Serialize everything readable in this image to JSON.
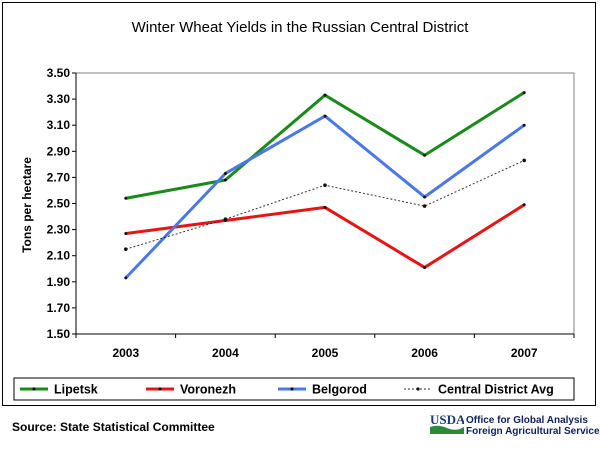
{
  "chart_data": {
    "type": "line",
    "title": "Winter Wheat Yields in the Russian Central District",
    "xlabel": "",
    "ylabel": "Tons per hectare",
    "categories": [
      "2003",
      "2004",
      "2005",
      "2006",
      "2007"
    ],
    "ylim": [
      1.5,
      3.5
    ],
    "yticks": [
      "1.50",
      "1.70",
      "1.90",
      "2.10",
      "2.30",
      "2.50",
      "2.70",
      "2.90",
      "3.10",
      "3.30",
      "3.50"
    ],
    "grid": "horizontal",
    "legend_position": "bottom",
    "series": [
      {
        "name": "Lipetsk",
        "values": [
          2.54,
          2.68,
          3.33,
          2.87,
          3.35
        ],
        "color": "#1a8a1a",
        "style": "solid"
      },
      {
        "name": "Voronezh",
        "values": [
          2.27,
          2.37,
          2.47,
          2.01,
          2.49
        ],
        "color": "#e81414",
        "style": "solid"
      },
      {
        "name": "Belgorod",
        "values": [
          1.93,
          2.73,
          3.17,
          2.55,
          3.1
        ],
        "color": "#4a78e8",
        "style": "solid"
      },
      {
        "name": "Central District Avg",
        "values": [
          2.15,
          2.38,
          2.64,
          2.48,
          2.83
        ],
        "color": "#333333",
        "style": "dotted"
      }
    ]
  },
  "footer": {
    "source": "Source:  State Statistical Committee",
    "logo_text": "USDA",
    "agency_line1": "Office for Global Analysis",
    "agency_line2": "Foreign Agricultural Service"
  }
}
